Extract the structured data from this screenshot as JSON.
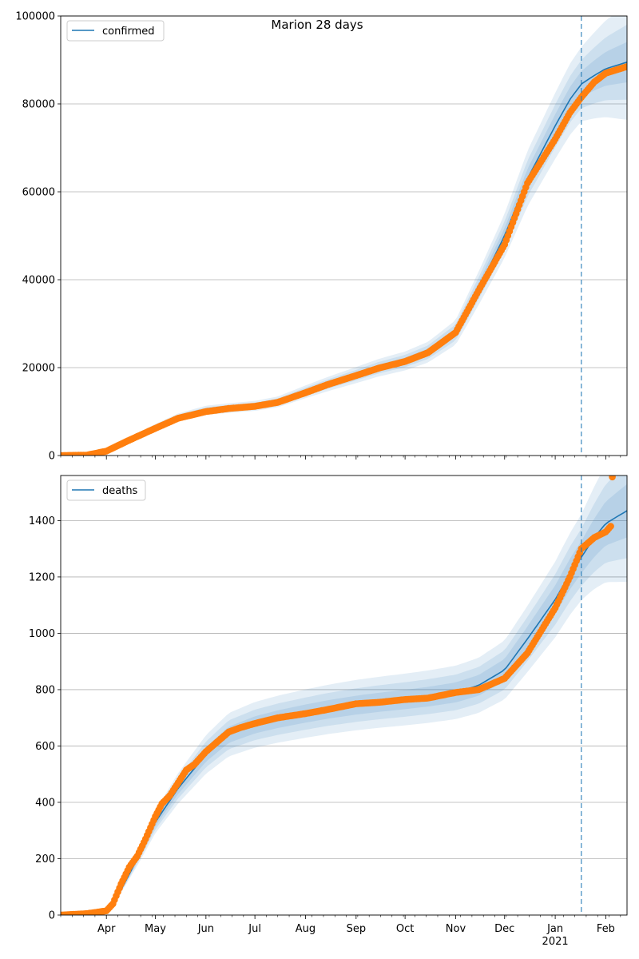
{
  "title": "Marion 28 days",
  "colors": {
    "model": "#1f77b4",
    "observed": "#ff7f0e",
    "band": "#1f77b4",
    "grid": "#b0b0b0",
    "cutoff": "#1f77b4"
  },
  "x_axis": {
    "month_labels": [
      "Apr",
      "May",
      "Jun",
      "Jul",
      "Aug",
      "Sep",
      "Oct",
      "Nov",
      "Dec",
      "Jan",
      "Feb"
    ],
    "month_dates": [
      "2020-04-01",
      "2020-05-01",
      "2020-06-01",
      "2020-07-01",
      "2020-08-01",
      "2020-09-01",
      "2020-10-01",
      "2020-11-01",
      "2020-12-01",
      "2021-01-01",
      "2021-02-01"
    ],
    "year_label": "2021",
    "xlim": [
      "2020-03-04",
      "2021-02-14"
    ],
    "cutoff_date": "2021-01-17"
  },
  "chart_data": [
    {
      "type": "line",
      "legend": "confirmed",
      "legend_location": "top-left",
      "ylim": [
        0,
        100000
      ],
      "yticks": [
        "0",
        "20000",
        "40000",
        "60000",
        "80000",
        "100000"
      ],
      "grid": true,
      "model_line": {
        "dates": [
          "2020-03-04",
          "2020-03-20",
          "2020-04-01",
          "2020-04-15",
          "2020-05-01",
          "2020-05-15",
          "2020-06-01",
          "2020-06-15",
          "2020-07-01",
          "2020-07-15",
          "2020-08-01",
          "2020-08-15",
          "2020-09-01",
          "2020-09-15",
          "2020-10-01",
          "2020-10-15",
          "2020-11-01",
          "2020-11-15",
          "2020-12-01",
          "2020-12-15",
          "2021-01-01",
          "2021-01-10",
          "2021-01-17",
          "2021-01-25",
          "2021-02-01",
          "2021-02-14"
        ],
        "values": [
          0,
          200,
          1200,
          3800,
          6500,
          8700,
          10300,
          10800,
          11300,
          12200,
          14500,
          16300,
          18300,
          20000,
          21500,
          23500,
          28000,
          38000,
          50000,
          63000,
          75000,
          81000,
          84500,
          86500,
          88000,
          89500
        ]
      },
      "observed": {
        "dates": [
          "2020-03-04",
          "2020-03-20",
          "2020-04-01",
          "2020-04-15",
          "2020-05-01",
          "2020-05-15",
          "2020-06-01",
          "2020-06-15",
          "2020-07-01",
          "2020-07-15",
          "2020-08-01",
          "2020-08-15",
          "2020-09-01",
          "2020-09-15",
          "2020-10-01",
          "2020-10-15",
          "2020-11-01",
          "2020-11-15",
          "2020-12-01",
          "2020-12-15",
          "2021-01-01",
          "2021-01-10",
          "2021-01-17",
          "2021-01-25",
          "2021-02-01",
          "2021-02-14"
        ],
        "values": [
          0,
          100,
          1000,
          3500,
          6200,
          8500,
          10000,
          10700,
          11200,
          12100,
          14300,
          16200,
          18200,
          19900,
          21400,
          23400,
          28000,
          37500,
          48000,
          62000,
          72000,
          78000,
          81500,
          85000,
          87000,
          88500
        ]
      }
    },
    {
      "type": "line",
      "legend": "deaths",
      "legend_location": "top-left",
      "ylim": [
        0,
        1560
      ],
      "yticks": [
        "0",
        "200",
        "400",
        "600",
        "800",
        "1000",
        "1200",
        "1400"
      ],
      "grid": true,
      "model_line": {
        "dates": [
          "2020-03-04",
          "2020-03-20",
          "2020-04-01",
          "2020-04-10",
          "2020-04-20",
          "2020-05-01",
          "2020-05-15",
          "2020-06-01",
          "2020-06-15",
          "2020-07-01",
          "2020-07-15",
          "2020-08-01",
          "2020-08-15",
          "2020-09-01",
          "2020-09-15",
          "2020-10-01",
          "2020-10-15",
          "2020-11-01",
          "2020-11-15",
          "2020-12-01",
          "2020-12-15",
          "2021-01-01",
          "2021-01-10",
          "2021-01-17",
          "2021-01-25",
          "2021-02-01",
          "2021-02-14"
        ],
        "values": [
          0,
          2,
          20,
          90,
          200,
          330,
          450,
          570,
          640,
          675,
          695,
          715,
          730,
          745,
          755,
          765,
          775,
          790,
          815,
          870,
          980,
          1120,
          1210,
          1270,
          1340,
          1390,
          1435
        ]
      },
      "observed": {
        "dates": [
          "2020-03-04",
          "2020-03-20",
          "2020-04-01",
          "2020-04-05",
          "2020-04-10",
          "2020-04-15",
          "2020-04-20",
          "2020-04-25",
          "2020-05-01",
          "2020-05-05",
          "2020-05-10",
          "2020-05-15",
          "2020-05-20",
          "2020-05-25",
          "2020-06-01",
          "2020-06-08",
          "2020-06-15",
          "2020-06-22",
          "2020-07-01",
          "2020-07-15",
          "2020-08-01",
          "2020-08-15",
          "2020-09-01",
          "2020-09-15",
          "2020-10-01",
          "2020-10-15",
          "2020-11-01",
          "2020-11-15",
          "2020-12-01",
          "2020-12-15",
          "2021-01-01",
          "2021-01-10",
          "2021-01-17",
          "2021-01-25",
          "2021-02-01",
          "2021-02-04",
          "2021-02-05"
        ],
        "values": [
          0,
          5,
          15,
          40,
          110,
          170,
          210,
          270,
          350,
          395,
          425,
          470,
          515,
          535,
          580,
          615,
          650,
          665,
          680,
          700,
          715,
          730,
          750,
          755,
          765,
          770,
          790,
          800,
          840,
          930,
          1090,
          1200,
          1300,
          1340,
          1360,
          1380,
          1555
        ]
      }
    }
  ]
}
